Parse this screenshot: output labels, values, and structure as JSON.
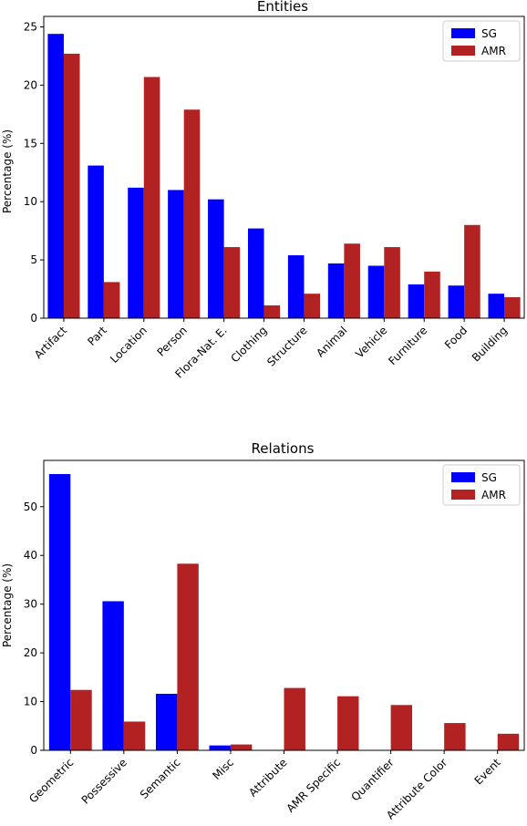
{
  "colors": {
    "sg": "#0000ff",
    "amr": "#b22222"
  },
  "chart_data": [
    {
      "type": "bar",
      "title": "Entities",
      "xlabel": "",
      "ylabel": "Percentage (%)",
      "ylim": [
        0,
        25.9
      ],
      "yticks": [
        0,
        5,
        10,
        15,
        20,
        25
      ],
      "legend_position": "top-right",
      "categories": [
        "Artifact",
        "Part",
        "Location",
        "Person",
        "Flora-Nat. E.",
        "Clothing",
        "Structure",
        "Animal",
        "Vehicle",
        "Furniture",
        "Food",
        "Building"
      ],
      "series": [
        {
          "name": "SG",
          "color": "#0000ff",
          "values": [
            24.4,
            13.1,
            11.2,
            11.0,
            10.2,
            7.7,
            5.4,
            4.7,
            4.5,
            2.9,
            2.8,
            2.1
          ]
        },
        {
          "name": "AMR",
          "color": "#b22222",
          "values": [
            22.7,
            3.1,
            20.7,
            17.9,
            6.1,
            1.1,
            2.1,
            6.4,
            6.1,
            4.0,
            8.0,
            1.8
          ]
        }
      ]
    },
    {
      "type": "bar",
      "title": "Relations",
      "xlabel": "",
      "ylabel": "Percentage (%)",
      "ylim": [
        0,
        59.5
      ],
      "yticks": [
        0,
        10,
        20,
        30,
        40,
        50
      ],
      "legend_position": "top-right",
      "categories": [
        "Geometric",
        "Possessive",
        "Semantic",
        "Misc",
        "Attribute",
        "AMR Specific",
        "Quantifier",
        "Attribute Color",
        "Event"
      ],
      "series": [
        {
          "name": "SG",
          "color": "#0000ff",
          "values": [
            56.7,
            30.6,
            11.6,
            1.0,
            0,
            0,
            0,
            0,
            0
          ]
        },
        {
          "name": "AMR",
          "color": "#b22222",
          "values": [
            12.4,
            5.9,
            38.3,
            1.2,
            12.8,
            11.1,
            9.3,
            5.6,
            3.4
          ]
        }
      ]
    }
  ]
}
